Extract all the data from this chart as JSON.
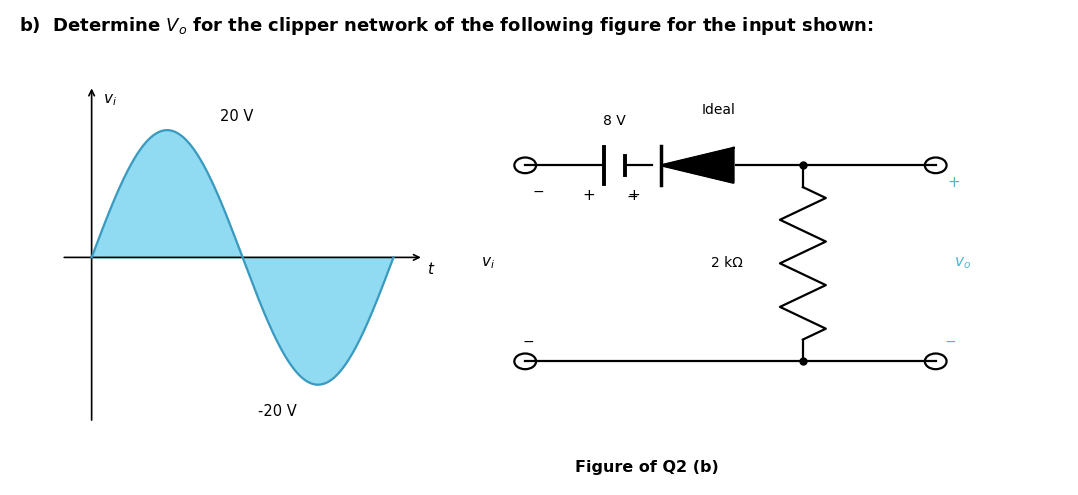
{
  "title_text": "b)  Determine $V_o$ for the clipper network of the following figure for the input shown:",
  "title_fontsize": 13,
  "bg_color": "#ffffff",
  "sine_fill_color": "#7dd4f0",
  "sine_line_color": "#3a9abf",
  "waveform_label_20": "20 V",
  "waveform_label_neg20": "-20 V",
  "circuit_label_8v": "8 V",
  "circuit_label_ideal": "Ideal",
  "circuit_label_2k": "2 kΩ",
  "figure_caption": "Figure of Q2 (b)",
  "text_color": "#000000",
  "blue_color": "#4db8d4"
}
